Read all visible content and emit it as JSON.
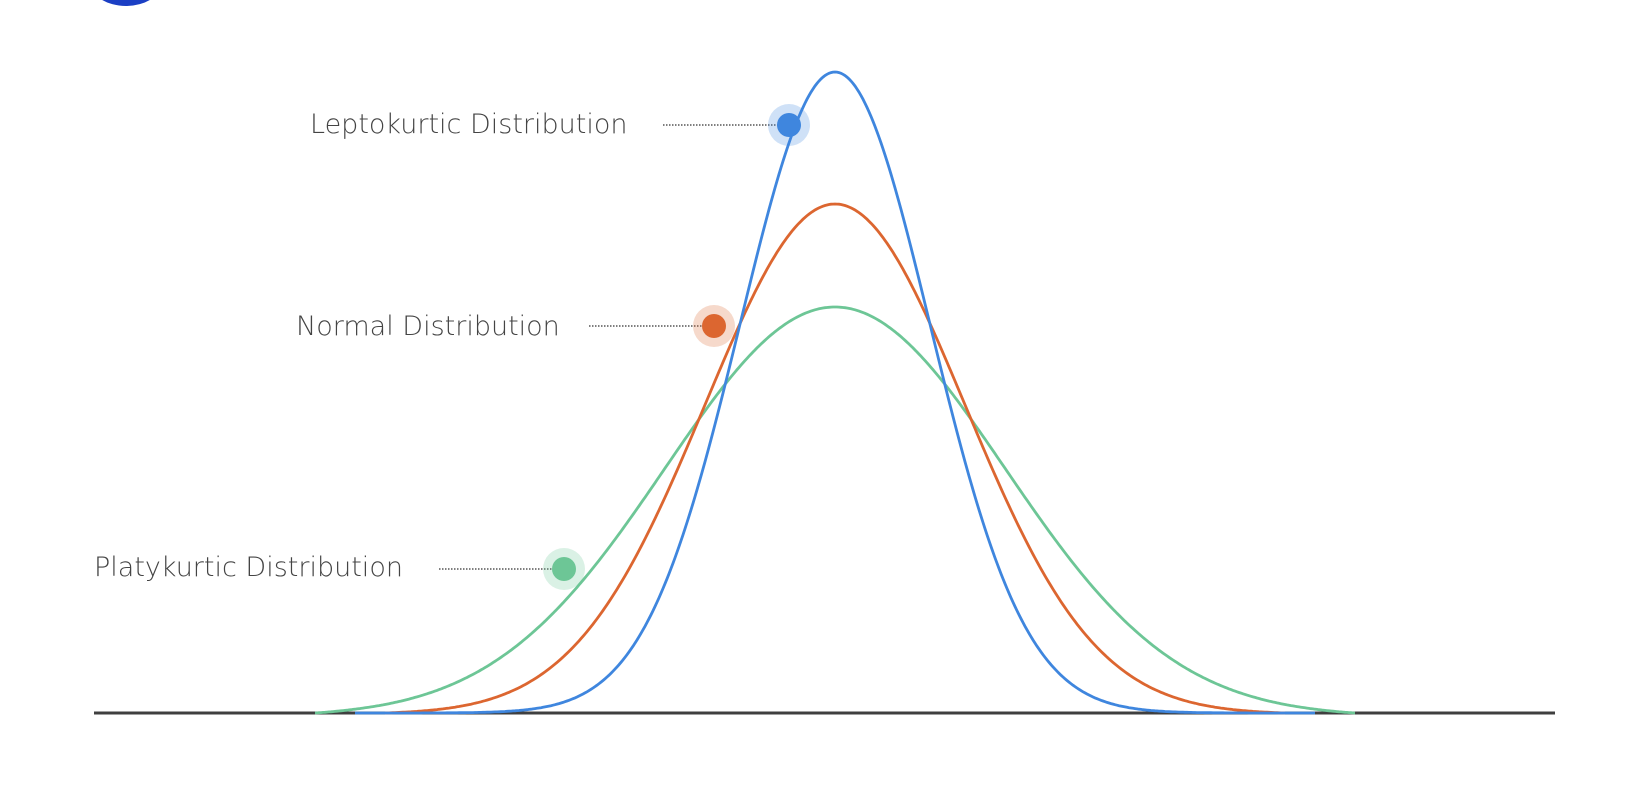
{
  "diagram": {
    "labels": {
      "leptokurtic": "Leptokurtic  Distribution",
      "normal": "Normal  Distribution",
      "platykurtic": "Platykurtic Distribution"
    },
    "colors": {
      "leptokurtic": "#3f86de",
      "normal": "#dc6630",
      "platykurtic": "#6dc696",
      "axis": "#3f3f3f",
      "logo": "#1b3fc4"
    }
  }
}
